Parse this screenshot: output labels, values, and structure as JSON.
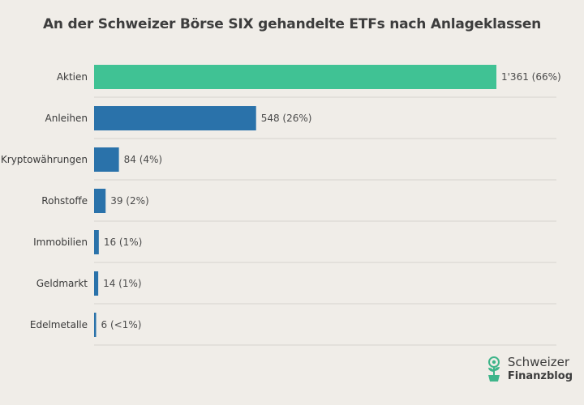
{
  "chart_data": {
    "type": "bar",
    "orientation": "horizontal",
    "title": "An der Schweizer Börse SIX gehandelte ETFs nach Anlageklassen",
    "categories": [
      "Aktien",
      "Anleihen",
      "Kryptowährungen",
      "Rohstoffe",
      "Immobilien",
      "Geldmarkt",
      "Edelmetalle"
    ],
    "values": [
      1361,
      548,
      84,
      39,
      16,
      14,
      6
    ],
    "value_labels": [
      "1'361  (66%)",
      "548  (26%)",
      "84  (4%)",
      "39  (2%)",
      "16  (1%)",
      "14  (1%)",
      "6  (<1%)"
    ],
    "bar_colors": [
      "#40c294",
      "#2a72aa",
      "#2a72aa",
      "#2a72aa",
      "#2a72aa",
      "#2a72aa",
      "#2a72aa"
    ],
    "grid": "horizontal separators",
    "legend": "none"
  },
  "logo": {
    "line1": "Schweizer",
    "line2": "Finanzblog",
    "icon": "plant-coin-icon",
    "color": "#3fb58a"
  },
  "colors": {
    "background": "#f0ede8",
    "highlight_bar": "#40c294",
    "bar": "#2a72aa",
    "separator": "#d6d3ce"
  }
}
